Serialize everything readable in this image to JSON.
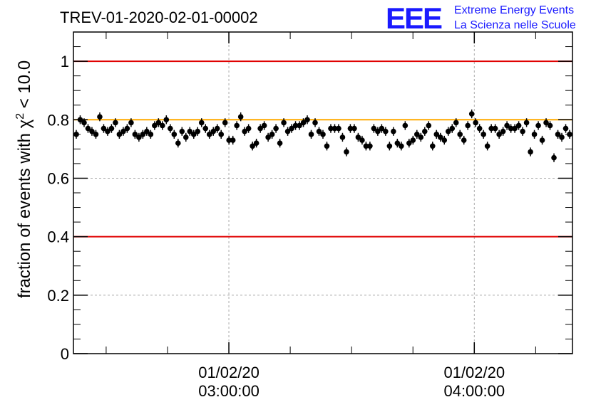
{
  "chart_data": {
    "type": "scatter",
    "title": "TREV-01-2020-02-01-00002",
    "logo": {
      "mark": "EEE",
      "line1": "Extreme Energy Events",
      "line2": "La Scienza nelle Scuole"
    },
    "ylabel": {
      "prefix": "fraction of events with ",
      "chi": "χ",
      "sup": "2",
      "suffix": " < 10.0"
    },
    "ylim": [
      0,
      1.1
    ],
    "yticks": [
      "0",
      "0.2",
      "0.4",
      "0.6",
      "0.8",
      "1"
    ],
    "ytick_values": [
      0,
      0.2,
      0.4,
      0.6,
      0.8,
      1.0
    ],
    "xlim_minutes": [
      -38,
      84
    ],
    "xticks": [
      {
        "minutes": 0,
        "line1": "01/02/20",
        "line2": "03:00:00"
      },
      {
        "minutes": 60,
        "line1": "01/02/20",
        "line2": "04:00:00"
      }
    ],
    "reference_lines": [
      {
        "y": 1.0,
        "color": "#e00000"
      },
      {
        "y": 0.4,
        "color": "#e00000"
      },
      {
        "y": 0.8,
        "color": "#ffaa00"
      }
    ],
    "grid": true,
    "marker_color": "#000000",
    "error_bar": 0.015,
    "values": [
      0.75,
      0.8,
      0.79,
      0.77,
      0.76,
      0.75,
      0.81,
      0.77,
      0.76,
      0.77,
      0.79,
      0.75,
      0.76,
      0.77,
      0.79,
      0.75,
      0.74,
      0.75,
      0.76,
      0.75,
      0.78,
      0.79,
      0.78,
      0.8,
      0.77,
      0.75,
      0.72,
      0.76,
      0.74,
      0.76,
      0.75,
      0.76,
      0.79,
      0.77,
      0.75,
      0.76,
      0.77,
      0.75,
      0.79,
      0.73,
      0.73,
      0.78,
      0.81,
      0.76,
      0.77,
      0.71,
      0.72,
      0.77,
      0.78,
      0.74,
      0.75,
      0.77,
      0.72,
      0.79,
      0.76,
      0.77,
      0.78,
      0.78,
      0.79,
      0.8,
      0.75,
      0.79,
      0.76,
      0.75,
      0.71,
      0.77,
      0.77,
      0.77,
      0.74,
      0.69,
      0.77,
      0.77,
      0.74,
      0.73,
      0.71,
      0.71,
      0.77,
      0.76,
      0.77,
      0.76,
      0.71,
      0.76,
      0.72,
      0.71,
      0.78,
      0.72,
      0.73,
      0.75,
      0.74,
      0.76,
      0.78,
      0.71,
      0.75,
      0.74,
      0.73,
      0.76,
      0.77,
      0.79,
      0.75,
      0.73,
      0.78,
      0.82,
      0.79,
      0.77,
      0.75,
      0.71,
      0.77,
      0.77,
      0.75,
      0.76,
      0.78,
      0.77,
      0.77,
      0.78,
      0.76,
      0.79,
      0.69,
      0.75,
      0.78,
      0.73,
      0.79,
      0.78,
      0.67,
      0.75,
      0.74,
      0.77,
      0.75
    ]
  }
}
